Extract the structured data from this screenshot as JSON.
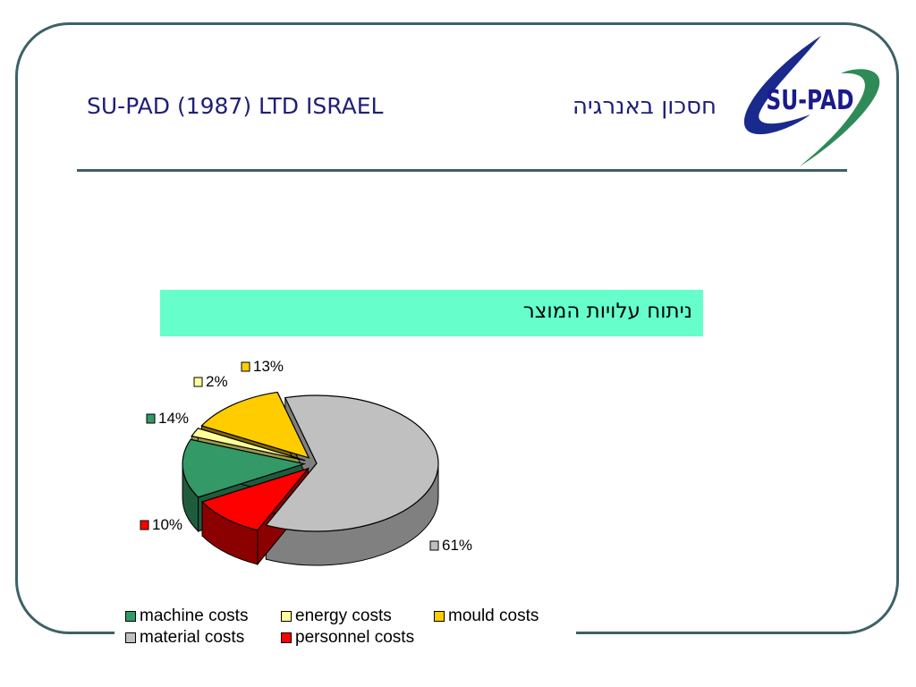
{
  "header": {
    "title_en": "SU-PAD (1987) LTD ISRAEL",
    "title_he": "חסכון באנרגיה",
    "logo_text": "SU-PAD"
  },
  "banner": {
    "text": "ניתוח עלויות המוצר"
  },
  "chart_data": {
    "type": "pie",
    "title": "",
    "three_d": true,
    "slices": [
      {
        "key": "material",
        "name": "material costs",
        "value": 61,
        "label": "61%",
        "color": "#c0c0c0",
        "side_color": "#808080",
        "exploded": false
      },
      {
        "key": "personnel",
        "name": "personnel costs",
        "value": 10,
        "label": "10%",
        "color": "#ff0000",
        "side_color": "#8b0000",
        "exploded": true
      },
      {
        "key": "machine",
        "name": "machine costs",
        "value": 14,
        "label": "14%",
        "color": "#339966",
        "side_color": "#1f5c3d",
        "exploded": true
      },
      {
        "key": "energy",
        "name": "energy costs",
        "value": 2,
        "label": "2%",
        "color": "#ffff99",
        "side_color": "#99994d",
        "exploded": true
      },
      {
        "key": "mould",
        "name": "mould costs",
        "value": 13,
        "label": "13%",
        "color": "#ffcc00",
        "side_color": "#806600",
        "exploded": true
      }
    ],
    "legend": {
      "placement": "bottom",
      "order": [
        "machine costs",
        "energy costs",
        "mould costs",
        "material costs",
        "personnel costs"
      ]
    }
  },
  "legend_labels": {
    "machine": "machine costs",
    "energy": "energy costs",
    "mould": "mould costs",
    "material": "material costs",
    "personnel": "personnel costs"
  },
  "colors": {
    "frame": "#3d6168",
    "title": "#1f1f7a",
    "banner": "#66ffcc"
  }
}
